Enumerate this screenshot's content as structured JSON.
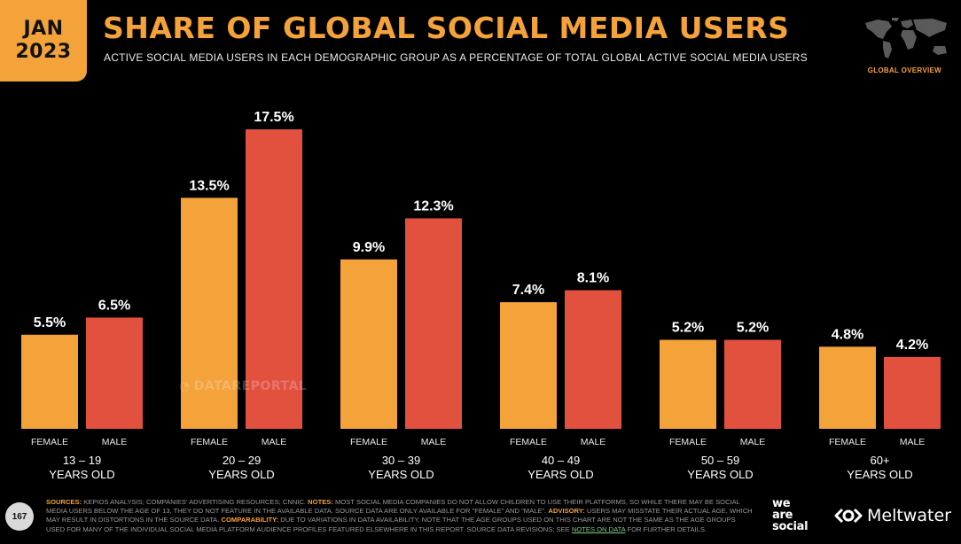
{
  "header": {
    "badge_month": "JAN",
    "badge_year": "2023",
    "title": "SHARE OF GLOBAL SOCIAL MEDIA USERS",
    "subtitle": "ACTIVE SOCIAL MEDIA USERS IN EACH DEMOGRAPHIC GROUP AS A PERCENTAGE OF TOTAL GLOBAL ACTIVE SOCIAL MEDIA USERS",
    "section_label": "GLOBAL OVERVIEW"
  },
  "watermark": "DATAREPORTAL",
  "page_number": "167",
  "footnote": {
    "sources_label": "SOURCES:",
    "sources_text": " KEPIOS ANALYSIS; COMPANIES' ADVERTISING RESOURCES; CNNIC.",
    "notes_label": "NOTES:",
    "notes_text": " MOST SOCIAL MEDIA COMPANIES DO NOT ALLOW CHILDREN TO USE THEIR PLATFORMS, SO WHILE THERE MAY BE SOCIAL MEDIA USERS BELOW THE AGE OF 13, THEY DO NOT FEATURE IN THE AVAILABLE DATA. SOURCE DATA ARE ONLY AVAILABLE FOR \"FEMALE\" AND \"MALE\".",
    "advisory_label": "ADVISORY:",
    "advisory_text": " USERS MAY MISSTATE THEIR ACTUAL AGE, WHICH MAY RESULT IN DISTORTIONS IN THE SOURCE DATA.",
    "comparability_label": "COMPARABILITY:",
    "comparability_text": " DUE TO VARIATIONS IN DATA AVAILABILITY, NOTE THAT THE AGE GROUPS USED ON THIS CHART ARE NOT THE SAME AS THE AGE GROUPS USED FOR MANY OF THE INDIVIDUAL SOCIAL MEDIA PLATFORM AUDIENCE PROFILES FEATURED ELSEWHERE IN THIS REPORT. SOURCE DATA REVISIONS; SEE",
    "link_text": "NOTES ON DATA",
    "tail_text": " FOR FURTHER DETAILS."
  },
  "brands": {
    "we_are_social_1": "we",
    "we_are_social_2": "are",
    "we_are_social_3": "social",
    "meltwater": "Meltwater"
  },
  "colors": {
    "female": "#f4a23a",
    "male": "#e2503e",
    "accent": "#f4a23a",
    "background": "#000000"
  },
  "chart_data": {
    "type": "bar",
    "categories": [
      "13 – 19 YEARS OLD",
      "20 – 29 YEARS OLD",
      "30 – 39 YEARS OLD",
      "40 – 49 YEARS OLD",
      "50 – 59 YEARS OLD",
      "60+ YEARS OLD"
    ],
    "category_lines": [
      [
        "13 – 19",
        "YEARS OLD"
      ],
      [
        "20 – 29",
        "YEARS OLD"
      ],
      [
        "30 – 39",
        "YEARS OLD"
      ],
      [
        "40 – 49",
        "YEARS OLD"
      ],
      [
        "50 – 59",
        "YEARS OLD"
      ],
      [
        "60+",
        "YEARS OLD"
      ]
    ],
    "series": [
      {
        "name": "FEMALE",
        "values": [
          5.5,
          13.5,
          9.9,
          7.4,
          5.2,
          4.8
        ],
        "labels": [
          "5.5%",
          "13.5%",
          "9.9%",
          "7.4%",
          "5.2%",
          "4.8%"
        ]
      },
      {
        "name": "MALE",
        "values": [
          6.5,
          17.5,
          12.3,
          8.1,
          5.2,
          4.2
        ],
        "labels": [
          "6.5%",
          "17.5%",
          "12.3%",
          "8.1%",
          "5.2%",
          "4.2%"
        ]
      }
    ],
    "value_unit": "%",
    "ylim": [
      0,
      17.5
    ],
    "grid": false
  }
}
